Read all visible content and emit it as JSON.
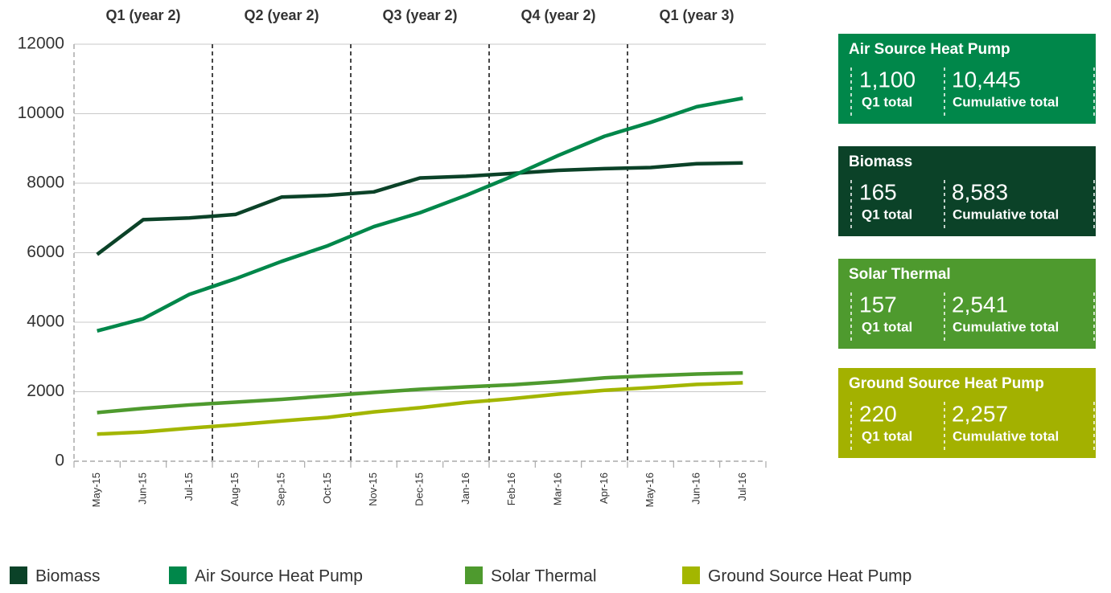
{
  "chart_data": {
    "type": "line",
    "quarters": [
      "Q1 (year 2)",
      "Q2 (year 2)",
      "Q3 (year 2)",
      "Q4 (year 2)",
      "Q1 (year 3)"
    ],
    "categories": [
      "May-15",
      "Jun-15",
      "Jul-15",
      "Aug-15",
      "Sep-15",
      "Oct-15",
      "Nov-15",
      "Dec-15",
      "Jan-16",
      "Feb-16",
      "Mar-16",
      "Apr-16",
      "May-16",
      "Jun-16",
      "Jul-16"
    ],
    "series": [
      {
        "name": "Biomass",
        "color": "#0b4228",
        "values": [
          5950,
          6950,
          7000,
          7100,
          7600,
          7650,
          7750,
          8150,
          8200,
          8280,
          8370,
          8420,
          8450,
          8560,
          8583
        ]
      },
      {
        "name": "Air Source Heat Pump",
        "color": "#00874a",
        "values": [
          3750,
          4100,
          4800,
          5250,
          5750,
          6200,
          6750,
          7150,
          7650,
          8200,
          8800,
          9350,
          9750,
          10200,
          10445
        ]
      },
      {
        "name": "Solar Thermal",
        "color": "#4e9a2e",
        "values": [
          1400,
          1520,
          1620,
          1700,
          1780,
          1880,
          1980,
          2070,
          2140,
          2200,
          2290,
          2400,
          2460,
          2510,
          2541
        ]
      },
      {
        "name": "Ground Source Heat Pump",
        "color": "#a3b600",
        "values": [
          780,
          840,
          950,
          1050,
          1160,
          1260,
          1420,
          1540,
          1690,
          1800,
          1930,
          2040,
          2120,
          2210,
          2257
        ]
      }
    ],
    "ylim": [
      0,
      12000
    ],
    "yticks": [
      0,
      2000,
      4000,
      6000,
      8000,
      10000,
      12000
    ],
    "grid": true
  },
  "cards": [
    {
      "title": "Air Source Heat Pump",
      "color": "#00874a",
      "q1_total": "1,100",
      "q1_label": "Q1 total",
      "cumulative": "10,445",
      "cumulative_label": "Cumulative total"
    },
    {
      "title": "Biomass",
      "color": "#0b4228",
      "q1_total": "165",
      "q1_label": "Q1 total",
      "cumulative": "8,583",
      "cumulative_label": "Cumulative total"
    },
    {
      "title": "Solar Thermal",
      "color": "#4e9a2e",
      "q1_total": "157",
      "q1_label": "Q1 total",
      "cumulative": "2,541",
      "cumulative_label": "Cumulative total"
    },
    {
      "title": "Ground Source Heat Pump",
      "color": "#a3b100",
      "q1_total": "220",
      "q1_label": "Q1 total",
      "cumulative": "2,257",
      "cumulative_label": "Cumulative total"
    }
  ]
}
